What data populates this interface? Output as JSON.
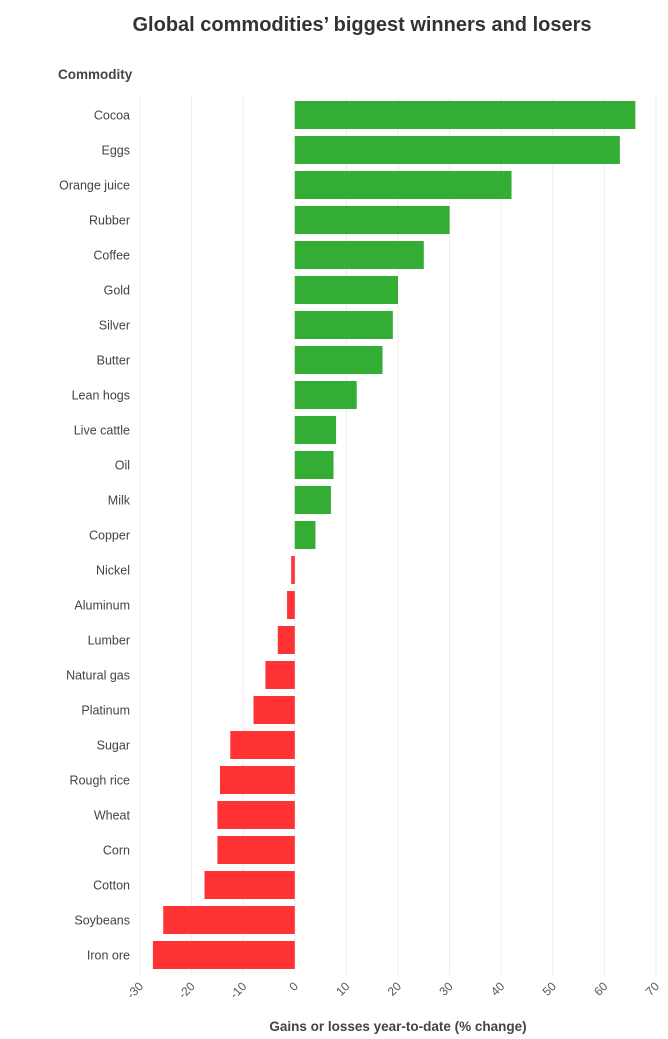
{
  "chart_data": {
    "type": "bar",
    "orientation": "horizontal",
    "title": "Global commodities’ biggest winners and losers",
    "ylabel": "Commodity",
    "xlabel": "Gains or losses year-to-date (% change)",
    "categories": [
      "Cocoa",
      "Eggs",
      "Orange juice",
      "Rubber",
      "Coffee",
      "Gold",
      "Silver",
      "Butter",
      "Lean hogs",
      "Live cattle",
      "Oil",
      "Milk",
      "Copper",
      "Nickel",
      "Aluminum",
      "Lumber",
      "Natural gas",
      "Platinum",
      "Sugar",
      "Rough rice",
      "Wheat",
      "Corn",
      "Cotton",
      "Soybeans",
      "Iron ore"
    ],
    "values": [
      66,
      63,
      42,
      30,
      25,
      20,
      19,
      17,
      12,
      8,
      7.5,
      7,
      4,
      -0.7,
      -1.5,
      -3.3,
      -5.7,
      -8,
      -12.5,
      -14.5,
      -15,
      -15,
      -17.5,
      -25.5,
      -27.5
    ],
    "xlim": [
      -30,
      70
    ],
    "xticks": [
      "-30",
      "-20",
      "-10",
      "0",
      "10",
      "20",
      "30",
      "40",
      "50",
      "60",
      "70"
    ],
    "grid": "vertical",
    "colors": {
      "positive": "#33ad33",
      "negative": "#ff3333"
    }
  }
}
